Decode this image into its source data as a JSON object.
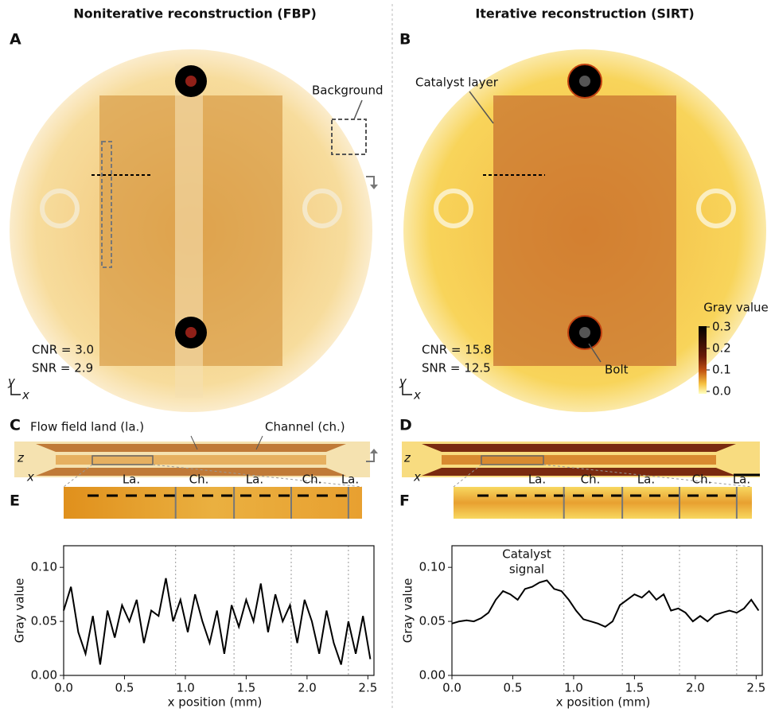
{
  "panels": [
    {
      "letter": "A",
      "title": "Noniterative reconstruction (FBP)",
      "labels": [
        "Background"
      ],
      "cnr": "CNR = 3.0",
      "snr": "SNR = 2.9",
      "axes": [
        "y",
        "x"
      ]
    },
    {
      "letter": "B",
      "title": "Iterative reconstruction (SIRT)",
      "labels": [
        "Catalyst layer",
        "Bolt"
      ],
      "cnr": "CNR = 15.8",
      "snr": "SNR = 12.5",
      "axes": [
        "y",
        "x"
      ],
      "colorbar": {
        "title": "Gray value",
        "ticks": [
          0.3,
          0.2,
          0.1,
          {
            "value": 0,
            "label": "0.0"
          }
        ]
      }
    },
    {
      "letter": "C",
      "labels": [
        "Flow field land (la.)",
        "Channel (ch.)"
      ],
      "axes": [
        "z",
        "x"
      ]
    },
    {
      "letter": "D",
      "axes": [
        "z",
        "x"
      ]
    }
  ],
  "chart_data": [
    {
      "type": "line",
      "panel": "E",
      "strip_labels": [
        "La.",
        "Ch.",
        "La.",
        "Ch.",
        "La."
      ],
      "xlabel": "x position (mm)",
      "ylabel": "Gray value",
      "xlim": [
        0,
        2.55
      ],
      "ylim": [
        0,
        0.12
      ],
      "xticks": [
        {
          "value": 0,
          "label": "0.0"
        },
        0.5,
        {
          "value": 1,
          "label": "1.0"
        },
        1.5,
        {
          "value": 2,
          "label": "2.0"
        },
        2.5
      ],
      "yticks": [
        {
          "value": 0,
          "label": "0.00"
        },
        0.05,
        {
          "value": 0.1,
          "label": "0.10"
        }
      ],
      "boundaries": [
        0.92,
        1.4,
        1.87,
        2.34
      ],
      "color": "#000000",
      "x": [
        0,
        0.06,
        0.12,
        0.18,
        0.24,
        0.3,
        0.36,
        0.42,
        0.48,
        0.54,
        0.6,
        0.66,
        0.72,
        0.78,
        0.84,
        0.9,
        0.96,
        1.02,
        1.08,
        1.14,
        1.2,
        1.26,
        1.32,
        1.38,
        1.44,
        1.5,
        1.56,
        1.62,
        1.68,
        1.74,
        1.8,
        1.86,
        1.92,
        1.98,
        2.04,
        2.1,
        2.16,
        2.22,
        2.28,
        2.34,
        2.4,
        2.46,
        2.52
      ],
      "values": [
        0.06,
        0.082,
        0.04,
        0.02,
        0.055,
        0.01,
        0.06,
        0.035,
        0.065,
        0.05,
        0.07,
        0.03,
        0.06,
        0.055,
        0.09,
        0.05,
        0.07,
        0.04,
        0.075,
        0.05,
        0.03,
        0.06,
        0.02,
        0.065,
        0.045,
        0.07,
        0.05,
        0.085,
        0.04,
        0.075,
        0.05,
        0.065,
        0.03,
        0.07,
        0.05,
        0.02,
        0.06,
        0.03,
        0.01,
        0.05,
        0.02,
        0.055,
        0.015
      ]
    },
    {
      "type": "line",
      "panel": "F",
      "strip_labels": [
        "La.",
        "Ch.",
        "La.",
        "Ch.",
        "La."
      ],
      "annotation": [
        "Catalyst",
        "signal"
      ],
      "xlabel": "x position (mm)",
      "ylabel": "Gray value",
      "xlim": [
        0,
        2.55
      ],
      "ylim": [
        0,
        0.12
      ],
      "xticks": [
        {
          "value": 0,
          "label": "0.0"
        },
        0.5,
        {
          "value": 1,
          "label": "1.0"
        },
        1.5,
        {
          "value": 2,
          "label": "2.0"
        },
        2.5
      ],
      "yticks": [
        {
          "value": 0,
          "label": "0.00"
        },
        0.05,
        {
          "value": 0.1,
          "label": "0.10"
        }
      ],
      "boundaries": [
        0.92,
        1.4,
        1.87,
        2.34
      ],
      "color": "#000000",
      "x": [
        0,
        0.06,
        0.12,
        0.18,
        0.24,
        0.3,
        0.36,
        0.42,
        0.48,
        0.54,
        0.6,
        0.66,
        0.72,
        0.78,
        0.84,
        0.9,
        0.96,
        1.02,
        1.08,
        1.14,
        1.2,
        1.26,
        1.32,
        1.38,
        1.44,
        1.5,
        1.56,
        1.62,
        1.68,
        1.74,
        1.8,
        1.86,
        1.92,
        1.98,
        2.04,
        2.1,
        2.16,
        2.22,
        2.28,
        2.34,
        2.4,
        2.46,
        2.52
      ],
      "values": [
        0.048,
        0.05,
        0.051,
        0.05,
        0.053,
        0.058,
        0.07,
        0.078,
        0.075,
        0.07,
        0.08,
        0.082,
        0.086,
        0.088,
        0.08,
        0.078,
        0.07,
        0.06,
        0.052,
        0.05,
        0.048,
        0.045,
        0.05,
        0.065,
        0.07,
        0.075,
        0.072,
        0.078,
        0.07,
        0.075,
        0.06,
        0.062,
        0.058,
        0.05,
        0.055,
        0.05,
        0.056,
        0.058,
        0.06,
        0.058,
        0.062,
        0.07,
        0.06
      ]
    }
  ]
}
